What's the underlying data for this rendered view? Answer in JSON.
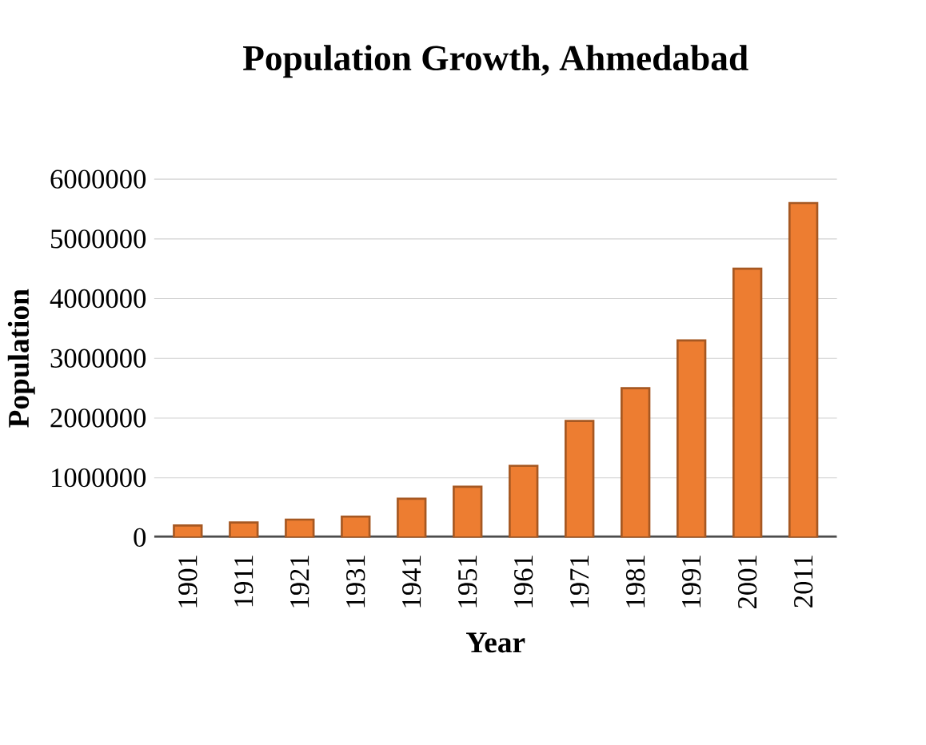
{
  "chart_data": {
    "type": "bar",
    "title": "Population Growth, Ahmedabad",
    "xlabel": "Year",
    "ylabel": "Population",
    "categories": [
      "1901",
      "1911",
      "1921",
      "1931",
      "1941",
      "1951",
      "1961",
      "1971",
      "1981",
      "1991",
      "2001",
      "2011"
    ],
    "values": [
      200000,
      250000,
      300000,
      350000,
      650000,
      850000,
      1200000,
      1950000,
      2500000,
      3300000,
      4500000,
      5600000
    ],
    "color": "#ed7d31",
    "ylim": [
      0,
      6000000
    ],
    "yticks": [
      0,
      1000000,
      2000000,
      3000000,
      4000000,
      5000000,
      6000000
    ],
    "grid": "y"
  }
}
